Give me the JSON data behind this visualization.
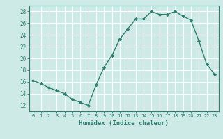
{
  "x": [
    0,
    1,
    2,
    3,
    4,
    5,
    6,
    7,
    8,
    9,
    10,
    11,
    12,
    13,
    14,
    15,
    16,
    17,
    18,
    19,
    20,
    21,
    22,
    23
  ],
  "y": [
    16.2,
    15.7,
    15.0,
    14.5,
    14.0,
    13.0,
    12.5,
    12.0,
    15.5,
    18.5,
    20.5,
    23.3,
    25.0,
    26.7,
    26.7,
    28.0,
    27.5,
    27.5,
    28.0,
    27.2,
    26.5,
    23.0,
    19.0,
    17.3
  ],
  "line_color": "#2e7d6e",
  "marker": "D",
  "markersize": 2.2,
  "linewidth": 1.0,
  "xlabel": "Humidex (Indice chaleur)",
  "xlim": [
    -0.5,
    23.5
  ],
  "ylim": [
    11,
    29
  ],
  "yticks": [
    12,
    14,
    16,
    18,
    20,
    22,
    24,
    26,
    28
  ],
  "xticks": [
    0,
    1,
    2,
    3,
    4,
    5,
    6,
    7,
    8,
    9,
    10,
    11,
    12,
    13,
    14,
    15,
    16,
    17,
    18,
    19,
    20,
    21,
    22,
    23
  ],
  "bg_color": "#ceeae6",
  "grid_color": "#ffffff",
  "tick_color": "#2e7d6e",
  "label_color": "#2e7d6e",
  "axis_color": "#2e7d6e"
}
